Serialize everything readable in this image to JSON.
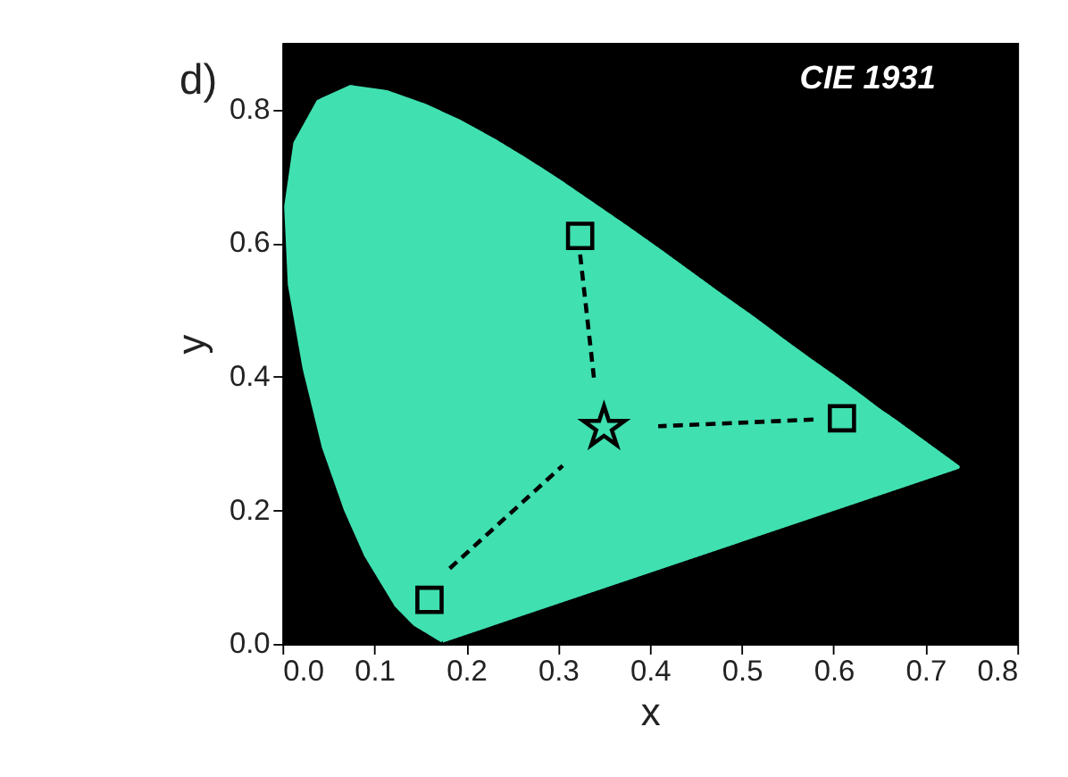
{
  "chart_data": {
    "type": "scatter",
    "xlabel": "x",
    "ylabel": "y",
    "xlim": [
      0,
      0.8
    ],
    "ylim": [
      0,
      0.9
    ],
    "xticks": [
      {
        "value": 0,
        "label": "0.0"
      },
      0.1,
      0.2,
      0.3,
      0.4,
      0.5,
      0.6,
      0.7,
      0.8
    ],
    "yticks": [
      {
        "value": 0,
        "label": "0.0"
      },
      0.2,
      0.4,
      0.6,
      0.8
    ],
    "grid": false,
    "annotations": [
      "CIE 1931",
      "d)"
    ],
    "series": [
      {
        "type": "area",
        "color": "#40e0b0",
        "x": [
          0.174,
          0.144,
          0.124,
          0.091,
          0.069,
          0.045,
          0.024,
          0.008,
          0.004,
          0.014,
          0.039,
          0.074,
          0.114,
          0.155,
          0.193,
          0.23,
          0.266,
          0.302,
          0.337,
          0.373,
          0.409,
          0.444,
          0.479,
          0.513,
          0.545,
          0.575,
          0.603,
          0.627,
          0.648,
          0.666,
          0.68,
          0.692,
          0.701,
          0.708,
          0.735,
          0.174
        ],
        "values": [
          0.005,
          0.03,
          0.058,
          0.133,
          0.201,
          0.295,
          0.413,
          0.538,
          0.655,
          0.75,
          0.812,
          0.834,
          0.826,
          0.806,
          0.782,
          0.754,
          0.724,
          0.692,
          0.659,
          0.625,
          0.59,
          0.555,
          0.52,
          0.487,
          0.454,
          0.424,
          0.397,
          0.373,
          0.351,
          0.334,
          0.32,
          0.308,
          0.299,
          0.292,
          0.265,
          0.005
        ]
      },
      {
        "type": "line",
        "line_style": "dashed",
        "color": "#000000",
        "x": [
          0.182,
          0.305
        ],
        "values": [
          0.113,
          0.267
        ]
      },
      {
        "type": "line",
        "line_style": "dashed",
        "color": "#000000",
        "x": [
          0.324,
          0.339
        ],
        "values": [
          0.583,
          0.399
        ]
      },
      {
        "type": "line",
        "line_style": "dashed",
        "color": "#000000",
        "x": [
          0.578,
          0.409
        ],
        "values": [
          0.336,
          0.326
        ]
      },
      {
        "marker": "square",
        "color": "#000000",
        "x": [
          0.16
        ],
        "values": [
          0.066
        ]
      },
      {
        "marker": "square",
        "color": "#000000",
        "x": [
          0.324
        ],
        "values": [
          0.611
        ]
      },
      {
        "marker": "square",
        "color": "#000000",
        "x": [
          0.609
        ],
        "values": [
          0.338
        ]
      },
      {
        "marker": "star",
        "color": "#000000",
        "x": [
          0.35
        ],
        "values": [
          0.324
        ]
      }
    ]
  }
}
